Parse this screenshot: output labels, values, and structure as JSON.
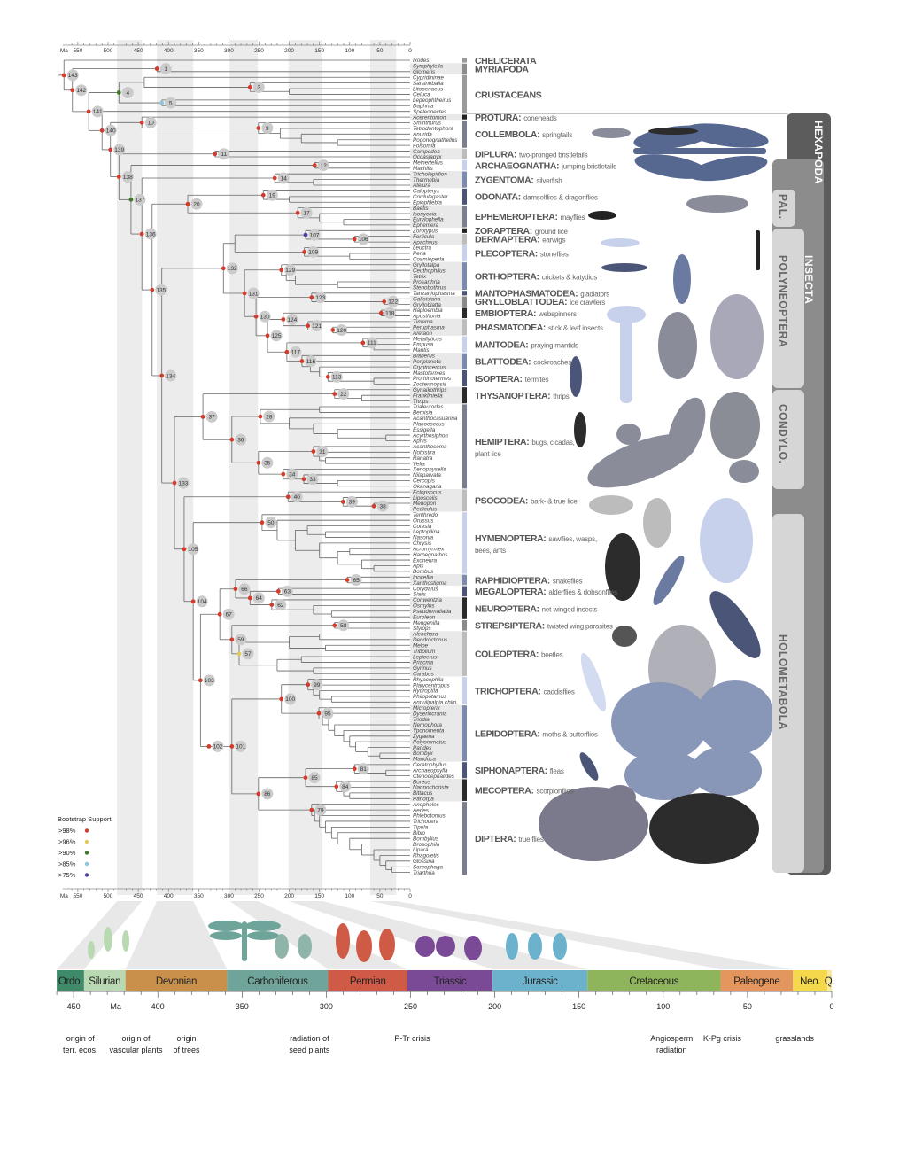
{
  "tree_axis": {
    "unit": "Ma",
    "labels": [
      550,
      500,
      450,
      400,
      350,
      300,
      250,
      200,
      150,
      100,
      50,
      0
    ]
  },
  "tree_newick": "(Ixodes,((Symphylella,Glomeris)1|419|r,(((Cypridininae,(Sarsinebalia,(Litopenaeus,Celuca)|200|)3|265|r)|440|,(Lepeophtheirus,Daphnia)5|411|b)4|482|g,(Speleonectes,((Acerentomon,(Sminthurus,(Tetrodontophora,(Anurida,(Pogonognathellus,Folsomia)|120|)|180|)|215|)9|251|r)10|444|r,((Campodea,Occasjapyx)11|323|r,((Meinertellus,Machilis)12|158|r,((Tricholepidion,(Thermobia,Atelura)|160|)14|224|r,(((Calopteryx,(Cordulegaster,Epiophlebia)|200|)19|243|r,(Baetis,(Isonychia,(Eurylophella,Ephemera)|110|)|150|)17|186|r)20|368|r,((((Zorotypus,(Forficula,Apachyus)106|92|r)107|173|p,(Leuctra,(Perla,Cosmioperla)|100|)109|175|r)|290|,((Gryllotalpa,(Ceuthophilus,(Tetrix,(Prosarthria,Stenobothrus)|120|)|190|)|205|)129|213|r,((Tanzaniophasma,(Galloisiana,Grylloblatta)122|43|r)123|163|r,(((Haploembia,Aposthonia)118|48|r,(Timema,(Peruphasma,Aretaon)120|128|r)121|169|r)124|210|r,((Metallyticus,(Empusa,Mantis)|60|)111|78|r,(Blaberus,(Periplaneta,(Cryptocercus,(Mastotermes,(Prorhinotermes,Zootermopsis)|60|)113|136|r)|150|)|165|)116|179|r)117|204|r)125|236|r)130|255|r)131|274|r)132|309|r,(((Gynaikothrips,(Frankliniella,Thrips)|80|)22|125|r,(((Trialeurodes,Bemisia)|150|,(Acanthocasuarina,(Planococcus,(Essigella,(Acyrthosiphon,Aphis)|40|)|120|)|160|)|200|)28|248|r,((Acanthosoma,(Notostira,(Ranatra,Velia)|140|)|150|)31|160|r,(Xenophysella,(Nilaparvata,(Cercopis,Okanagana)|120|)33|176|r)34|210|r)35|251|r)36|295|r)37|343|r,((Ectopsocus,(Liposcelis,(Menopon,Pediculus)38|60|r)39|111|r)40|202|r,((Tenthredo,(Orussus,((Cotesia,(Leptopilina,Nasonia)|140|)|170|,(Chrysis,((Acromyrmex,Harpegnathos)|100|,(Exoneura,(Apis,Bombus)|60|)|80|)|120|)|150|)|190|)|220|)50|245|r,((((Inocellia,Xanthostigma)65|104|r,((Corydalus,Sialis)63|218|r,(Conwentzia,(Osmylus,(Pseudomallada,Euroleon)|130|)|160|)62|229|r)64|265|r)66|289|r,((Mengenilla,Stylops)58|125|r,(((Aleochara,Dendroctonus)|150|,(Meloe,Tribolium)|140|)|200|,((Lepicerus,Priacma)|180|,(Gyrinus,Carabus)|160|)|220|)57|283|y)59|295|r)67|315|r,((((Rhyacophila,(Platycentropus,(Hydroptila,(Philopotamus,Annulipalpia chim.)|130|)|150|)|160|)99|169|r,(Micropterix,(Dyseriocrania,(Triodia,(Nemophora,(Yponomeuta,(Zygaena,(Polyommatus,(Parides,(Bombyx,Manduca)|50|)|70|)|90|)|100|)|110|)|125|)|135|)|145|)95|151|r)100|213|r,(((Ceratophyllus,(Archaeopsylla,Ctenocephalides)|40|)81|92|r,(Boreus,(Nannochorista,(Bittacus,Panorpa)|100|)|110|)84|122|r)85|173|r,(Anopheles,(Aedes,(Phlebotomus,(Trichocera,(Tipula,(Bibio,(Bombylius,(Drosophila,(Lipara,(Rhagoletis,(Glossina,(Sarcophaga,Triarthria)|30|)|40|)|50|)|60|)|80|)|100|)|120|)|130|)|140|)|150|)|158|)79|163|r)86|251|r)101|295|r)102|333|r)103|347|r)104|359|r)105|374|r)133|390|r)134|411|r)135|427|r)136|444|r)137|462|g)138|482|r)139|496|r)140|510|r)141|532|r)142|559|r)143|573|r",
  "support_colors": {
    "r": "#d23c2c",
    "y": "#e3c85a",
    "g": "#3f7a2c",
    "b": "#8ec6da",
    "p": "#4a3f9a"
  },
  "legend": {
    "title": "Bootstrap Support",
    "items": [
      {
        "label": ">98%",
        "code": "r"
      },
      {
        "label": ">96%",
        "code": "y"
      },
      {
        "label": ">90%",
        "code": "g"
      },
      {
        "label": ">85%",
        "code": "b"
      },
      {
        "label": ">75%",
        "code": "p"
      }
    ]
  },
  "groups": [
    {
      "name": "CHELICERATA",
      "common": "",
      "n": 1,
      "color": "#9a9a9a"
    },
    {
      "name": "MYRIAPODA",
      "common": "",
      "n": 2,
      "color": "#8c8c8c"
    },
    {
      "name": "CRUSTACEANS",
      "common": "",
      "n": 7,
      "color": "#9a9a9a"
    },
    {
      "name": "PROTURA:",
      "common": "coneheads",
      "n": 1,
      "color": "#222222"
    },
    {
      "name": "COLLEMBOLA:",
      "common": "springtails",
      "n": 5,
      "color": "#7c7e90"
    },
    {
      "name": "DIPLURA:",
      "common": "two-pronged bristletails",
      "n": 2,
      "color": "#bcbcbc"
    },
    {
      "name": "ARCHAEOGNATHA:",
      "common": "jumping bristletails",
      "n": 2,
      "color": "#c7d1ec"
    },
    {
      "name": "ZYGENTOMA:",
      "common": "silverfish",
      "n": 3,
      "color": "#7a8bad"
    },
    {
      "name": "ODONATA:",
      "common": "damselflies & dragonflies",
      "n": 3,
      "color": "#4a5578"
    },
    {
      "name": "EPHEMEROPTERA:",
      "common": "mayflies",
      "n": 4,
      "color": "#7c7e90"
    },
    {
      "name": "ZORAPTERA:",
      "common": "ground lice",
      "n": 1,
      "color": "#222222"
    },
    {
      "name": "DERMAPTERA:",
      "common": "earwigs",
      "n": 2,
      "color": "#bcbcbc"
    },
    {
      "name": "PLECOPTERA:",
      "common": "stoneflies",
      "n": 3,
      "color": "#c7d1ec"
    },
    {
      "name": "ORTHOPTERA:",
      "common": "crickets & katydids",
      "n": 5,
      "color": "#7a8bad"
    },
    {
      "name": "MANTOPHASMATODEA:",
      "common": "gladiators",
      "n": 1,
      "color": "#4a5578"
    },
    {
      "name": "GRYLLOBLATTODEA:",
      "common": "ice crawlers",
      "n": 2,
      "color": "#8a8a8a"
    },
    {
      "name": "EMBIOPTERA:",
      "common": "webspinners",
      "n": 2,
      "color": "#2a2a2a"
    },
    {
      "name": "PHASMATODEA:",
      "common": "stick & leaf insects",
      "n": 3,
      "color": "#bcbcbc"
    },
    {
      "name": "MANTODEA:",
      "common": "praying mantids",
      "n": 3,
      "color": "#c7d1ec"
    },
    {
      "name": "BLATTODEA:",
      "common": "cockroaches",
      "n": 3,
      "color": "#7a8bad"
    },
    {
      "name": "ISOPTERA:",
      "common": "termites",
      "n": 3,
      "color": "#4a5578"
    },
    {
      "name": "THYSANOPTERA:",
      "common": "thrips",
      "n": 3,
      "color": "#2a2a2a"
    },
    {
      "name": "HEMIPTERA:",
      "common": "bugs, cicadas,",
      "common2": "plant lice",
      "n": 15,
      "color": "#7c7e90"
    },
    {
      "name": "PSOCODEA:",
      "common": "bark- & true lice",
      "n": 4,
      "color": "#bcbcbc"
    },
    {
      "name": "HYMENOPTERA:",
      "common": "sawflies, wasps,",
      "common2": "bees, ants",
      "n": 11,
      "color": "#c7d1ec"
    },
    {
      "name": "RAPHIDIOPTERA:",
      "common": "snakeflies",
      "n": 2,
      "color": "#7a8bad"
    },
    {
      "name": "MEGALOPTERA:",
      "common": "alderflies & dobsonflies",
      "n": 2,
      "color": "#4a5578"
    },
    {
      "name": "NEUROPTERA:",
      "common": "net-winged insects",
      "n": 4,
      "color": "#2a2a2a"
    },
    {
      "name": "STREPSIPTERA:",
      "common": "twisted wing parasites",
      "n": 2,
      "color": "#8a8a8a"
    },
    {
      "name": "COLEOPTERA:",
      "common": "beetles",
      "n": 8,
      "color": "#bcbcbc"
    },
    {
      "name": "TRICHOPTERA:",
      "common": "caddisflies",
      "n": 5,
      "color": "#c7d1ec"
    },
    {
      "name": "LEPIDOPTERA:",
      "common": "moths & butterflies",
      "n": 10,
      "color": "#7a8bad"
    },
    {
      "name": "SIPHONAPTERA:",
      "common": "fleas",
      "n": 3,
      "color": "#4a5578"
    },
    {
      "name": "MECOPTERA:",
      "common": "scorpionflies",
      "n": 4,
      "color": "#2a2a2a"
    },
    {
      "name": "DIPTERA:",
      "common": "true flies",
      "n": 13,
      "color": "#7c7e90"
    }
  ],
  "clades": {
    "hexapoda": "HEXAPODA",
    "insecta": "INSECTA",
    "pal": "PAL.",
    "polyneoptera": "POLYNEOPTERA",
    "condylo": "CONDYLO.",
    "holometabola": "HOLOMETABOLA"
  },
  "periods": [
    {
      "name": "Ordo.",
      "start": 485,
      "end": 443.8,
      "color": "#3f8a68"
    },
    {
      "name": "Silurian",
      "start": 443.8,
      "end": 419.2,
      "color": "#b9d9b2"
    },
    {
      "name": "Devonian",
      "start": 419.2,
      "end": 358.9,
      "color": "#c9904c"
    },
    {
      "name": "Carboniferous",
      "start": 358.9,
      "end": 298.9,
      "color": "#6fa49b"
    },
    {
      "name": "Permian",
      "start": 298.9,
      "end": 251.9,
      "color": "#cf5b46"
    },
    {
      "name": "Triassic",
      "start": 251.9,
      "end": 201.3,
      "color": "#7b4a97"
    },
    {
      "name": "Jurassic",
      "start": 201.3,
      "end": 145,
      "color": "#6cb2cd"
    },
    {
      "name": "Cretaceous",
      "start": 145,
      "end": 66,
      "color": "#8fb55c"
    },
    {
      "name": "Paleogene",
      "start": 66,
      "end": 23,
      "color": "#e3965e"
    },
    {
      "name": "Neo.",
      "start": 23,
      "end": 2.6,
      "color": "#f5d84c"
    },
    {
      "name": "Q.",
      "start": 2.6,
      "end": 0,
      "color": "#f8ea9c"
    }
  ],
  "geo_axis": {
    "unit": "Ma",
    "unit_at": 425,
    "range": [
      460,
      0
    ],
    "labels": [
      450,
      400,
      350,
      300,
      250,
      200,
      150,
      100,
      50,
      0
    ]
  },
  "events": [
    {
      "lines": [
        "origin of",
        "terr. ecos."
      ],
      "ma": 446,
      "crisis": false
    },
    {
      "lines": [
        "origin of",
        "vascular plants"
      ],
      "ma": 413,
      "crisis": false
    },
    {
      "lines": [
        "origin",
        "of trees"
      ],
      "ma": 383,
      "crisis": false
    },
    {
      "lines": [
        "radiation of",
        "seed plants"
      ],
      "ma": 310,
      "crisis": false
    },
    {
      "lines": [
        "P-Tr crisis"
      ],
      "ma": 249,
      "crisis": true
    },
    {
      "lines": [
        "Angiosperm",
        "radiation"
      ],
      "ma": 95,
      "crisis": false
    },
    {
      "lines": [
        "K-Pg crisis"
      ],
      "ma": 65,
      "crisis": true
    },
    {
      "lines": [
        "grasslands"
      ],
      "ma": 22,
      "crisis": false
    }
  ],
  "crisis_color": "#d0584a"
}
